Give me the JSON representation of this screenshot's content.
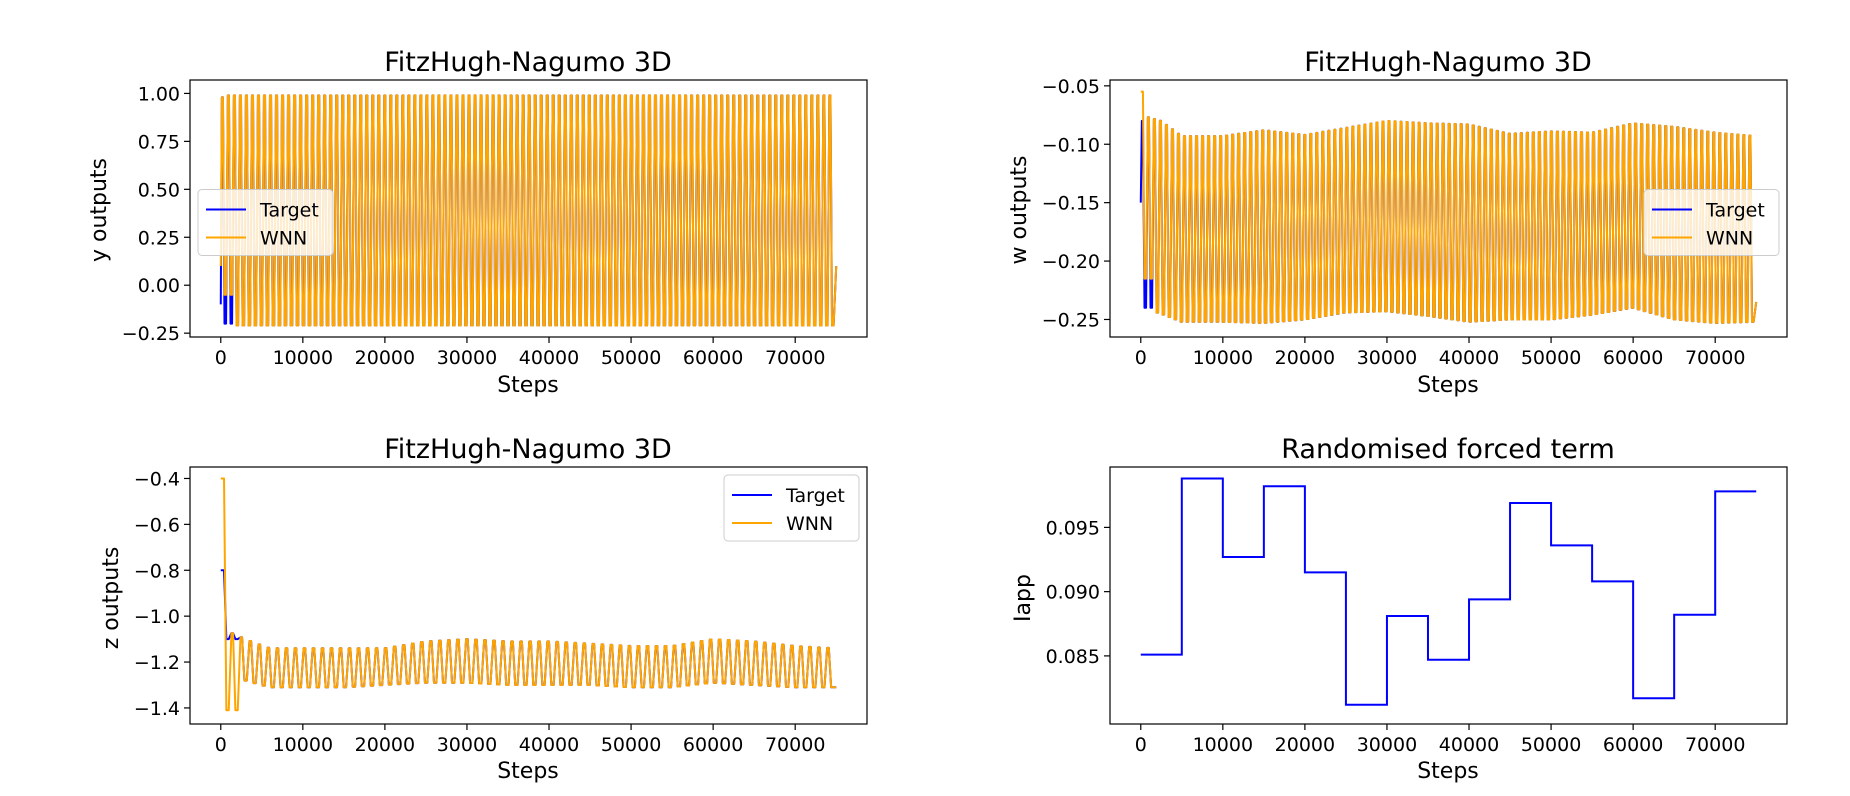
{
  "figure": {
    "colors": {
      "target": "#0000ff",
      "wnn": "#ffa500"
    }
  },
  "chart_data": [
    {
      "type": "line",
      "title": "FitzHugh-Nagumo 3D",
      "xlabel": "Steps",
      "ylabel": "y outputs",
      "xlim": [
        -3750,
        78750
      ],
      "ylim": [
        -0.27,
        1.07
      ],
      "xticks": [
        0,
        10000,
        20000,
        30000,
        40000,
        50000,
        60000,
        70000
      ],
      "xtick_labels": [
        "0",
        "10000",
        "20000",
        "30000",
        "40000",
        "50000",
        "60000",
        "70000"
      ],
      "yticks": [
        -0.25,
        0.0,
        0.25,
        0.5,
        0.75,
        1.0
      ],
      "ytick_labels": [
        "−0.25",
        "0.00",
        "0.25",
        "0.50",
        "0.75",
        "1.00"
      ],
      "legend": {
        "position": "center-left",
        "entries": [
          "Target",
          "WNN"
        ]
      },
      "grid": false,
      "oscillation": {
        "x_start": 0,
        "x_end": 75000,
        "period": 733,
        "upper": 0.99,
        "lower": -0.21,
        "wnn_initial": 0.1,
        "target_initial": -0.1,
        "end_value": 0.1
      },
      "series": [
        {
          "name": "Target",
          "color": "#0000ff",
          "start_min": -0.2,
          "start_max": 0.98
        },
        {
          "name": "WNN",
          "color": "#ffa500",
          "start_min": -0.05,
          "start_max": 0.98
        }
      ]
    },
    {
      "type": "line",
      "title": "FitzHugh-Nagumo 3D",
      "xlabel": "Steps",
      "ylabel": "w outputs",
      "xlim": [
        -3750,
        78750
      ],
      "ylim": [
        -0.265,
        -0.045
      ],
      "xticks": [
        0,
        10000,
        20000,
        30000,
        40000,
        50000,
        60000,
        70000
      ],
      "xtick_labels": [
        "0",
        "10000",
        "20000",
        "30000",
        "40000",
        "50000",
        "60000",
        "70000"
      ],
      "yticks": [
        -0.25,
        -0.2,
        -0.15,
        -0.1,
        -0.05
      ],
      "ytick_labels": [
        "−0.25",
        "−0.20",
        "−0.15",
        "−0.10",
        "−0.05"
      ],
      "legend": {
        "position": "center-right",
        "entries": [
          "Target",
          "WNN"
        ]
      },
      "grid": false,
      "oscillation": {
        "x_start": 0,
        "x_end": 75000,
        "period": 733,
        "target_initial": -0.15,
        "wnn_initial": -0.055,
        "end_value": -0.235,
        "envelope_x": [
          0,
          2500,
          5000,
          10000,
          15000,
          20000,
          25000,
          30000,
          35000,
          40000,
          45000,
          50000,
          55000,
          60000,
          65000,
          70000,
          75000
        ],
        "envelope_upper": [
          -0.075,
          -0.08,
          -0.093,
          -0.093,
          -0.088,
          -0.092,
          -0.086,
          -0.08,
          -0.082,
          -0.083,
          -0.091,
          -0.089,
          -0.09,
          -0.082,
          -0.085,
          -0.09,
          -0.093
        ],
        "envelope_lower": [
          -0.24,
          -0.245,
          -0.252,
          -0.252,
          -0.253,
          -0.25,
          -0.244,
          -0.243,
          -0.247,
          -0.252,
          -0.25,
          -0.25,
          -0.246,
          -0.24,
          -0.25,
          -0.253,
          -0.252
        ]
      },
      "series": [
        {
          "name": "Target",
          "color": "#0000ff",
          "start_min": -0.24,
          "start_max": -0.08
        },
        {
          "name": "WNN",
          "color": "#ffa500",
          "start_min": -0.215,
          "start_max": -0.055
        }
      ]
    },
    {
      "type": "line",
      "title": "FitzHugh-Nagumo 3D",
      "xlabel": "Steps",
      "ylabel": "z outputs",
      "xlim": [
        -3750,
        78750
      ],
      "ylim": [
        -1.47,
        -0.35
      ],
      "xticks": [
        0,
        10000,
        20000,
        30000,
        40000,
        50000,
        60000,
        70000
      ],
      "xtick_labels": [
        "0",
        "10000",
        "20000",
        "30000",
        "40000",
        "50000",
        "60000",
        "70000"
      ],
      "yticks": [
        -1.4,
        -1.2,
        -1.0,
        -0.8,
        -0.6,
        -0.4
      ],
      "ytick_labels": [
        "−1.4",
        "−1.2",
        "−1.0",
        "−0.8",
        "−0.6",
        "−0.4"
      ],
      "legend": {
        "position": "top-right",
        "entries": [
          "Target",
          "WNN"
        ]
      },
      "grid": false,
      "oscillation": {
        "x_start": 0,
        "x_end": 75000,
        "period": 1100,
        "target_initial": -0.8,
        "wnn_initial": -0.4,
        "end_value": -1.31,
        "envelope_x": [
          0,
          3000,
          6000,
          10000,
          15000,
          20000,
          25000,
          30000,
          35000,
          40000,
          45000,
          50000,
          55000,
          60000,
          65000,
          70000,
          75000
        ],
        "envelope_upper": [
          -1.05,
          -1.1,
          -1.14,
          -1.14,
          -1.14,
          -1.14,
          -1.11,
          -1.1,
          -1.11,
          -1.11,
          -1.12,
          -1.13,
          -1.13,
          -1.1,
          -1.11,
          -1.13,
          -1.14
        ],
        "envelope_lower": [
          -1.25,
          -1.28,
          -1.31,
          -1.31,
          -1.31,
          -1.3,
          -1.29,
          -1.29,
          -1.3,
          -1.3,
          -1.3,
          -1.31,
          -1.31,
          -1.29,
          -1.3,
          -1.31,
          -1.31
        ]
      },
      "series": [
        {
          "name": "Target",
          "color": "#0000ff",
          "start_min": -1.1,
          "start_max": -0.8
        },
        {
          "name": "WNN",
          "color": "#ffa500",
          "start_min": -1.41,
          "start_max": -0.4
        }
      ]
    },
    {
      "type": "line",
      "title": "Randomised forced term",
      "xlabel": "Steps",
      "ylabel": "Iapp",
      "xlim": [
        -3750,
        78750
      ],
      "ylim": [
        0.0797,
        0.0997
      ],
      "xticks": [
        0,
        10000,
        20000,
        30000,
        40000,
        50000,
        60000,
        70000
      ],
      "xtick_labels": [
        "0",
        "10000",
        "20000",
        "30000",
        "40000",
        "50000",
        "60000",
        "70000"
      ],
      "yticks": [
        0.085,
        0.09,
        0.095
      ],
      "ytick_labels": [
        "0.085",
        "0.090",
        "0.095"
      ],
      "grid": false,
      "series": [
        {
          "name": "Iapp",
          "color": "#0000ff",
          "step": true,
          "x": [
            0,
            5000,
            10000,
            15000,
            20000,
            25000,
            30000,
            35000,
            40000,
            45000,
            50000,
            55000,
            60000,
            65000,
            70000,
            75000
          ],
          "values": [
            0.0851,
            0.0988,
            0.0927,
            0.0982,
            0.0915,
            0.0812,
            0.0881,
            0.0847,
            0.0894,
            0.0969,
            0.0936,
            0.0908,
            0.0817,
            0.0882,
            0.0978,
            0.0978
          ]
        }
      ]
    }
  ]
}
